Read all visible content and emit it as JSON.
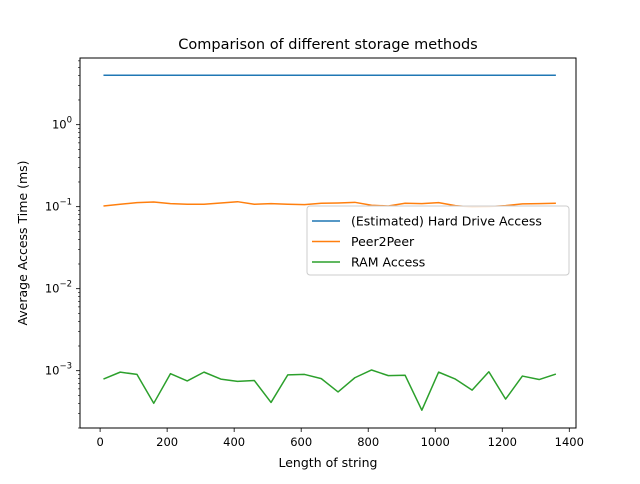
{
  "chart_data": {
    "type": "line",
    "title": "Comparison of different storage methods",
    "xlabel": "Length of string",
    "ylabel": "Average Access Time (ms)",
    "xlim": [
      -60,
      1420
    ],
    "ylim": [
      0.0002,
      6.5
    ],
    "yscale": "log",
    "grid": false,
    "legend_placement": "center-right",
    "x_ticks": [
      0,
      200,
      400,
      600,
      800,
      1000,
      1200,
      1400
    ],
    "y_ticks": [
      {
        "value": 0.001,
        "base": "10",
        "exp": "−3"
      },
      {
        "value": 0.01,
        "base": "10",
        "exp": "−2"
      },
      {
        "value": 0.1,
        "base": "10",
        "exp": "−1"
      },
      {
        "value": 1,
        "base": "10",
        "exp": "0"
      }
    ],
    "x": [
      10,
      60,
      110,
      160,
      210,
      260,
      310,
      360,
      410,
      460,
      510,
      560,
      610,
      660,
      710,
      760,
      810,
      860,
      910,
      960,
      1010,
      1060,
      1110,
      1160,
      1210,
      1260,
      1310,
      1360
    ],
    "series": [
      {
        "name": "(Estimated) Hard Drive Access",
        "color": "#1f77b4",
        "values": [
          4,
          4,
          4,
          4,
          4,
          4,
          4,
          4,
          4,
          4,
          4,
          4,
          4,
          4,
          4,
          4,
          4,
          4,
          4,
          4,
          4,
          4,
          4,
          4,
          4,
          4,
          4,
          4
        ]
      },
      {
        "name": "Peer2Peer",
        "color": "#ff7f0e",
        "values": [
          0.102,
          0.107,
          0.112,
          0.114,
          0.109,
          0.107,
          0.107,
          0.111,
          0.115,
          0.107,
          0.109,
          0.107,
          0.106,
          0.11,
          0.111,
          0.113,
          0.104,
          0.102,
          0.11,
          0.109,
          0.112,
          0.103,
          0.099,
          0.1,
          0.103,
          0.108,
          0.109,
          0.11
        ]
      },
      {
        "name": "RAM Access",
        "color": "#2ca02c",
        "values": [
          0.00079,
          0.00096,
          0.0009,
          0.0004,
          0.00092,
          0.00075,
          0.00096,
          0.00079,
          0.00074,
          0.00076,
          0.00041,
          0.00089,
          0.0009,
          0.0008,
          0.00055,
          0.00082,
          0.00102,
          0.00087,
          0.00088,
          0.00033,
          0.00096,
          0.00079,
          0.00058,
          0.00097,
          0.00045,
          0.00086,
          0.00078,
          0.00091
        ]
      }
    ]
  }
}
